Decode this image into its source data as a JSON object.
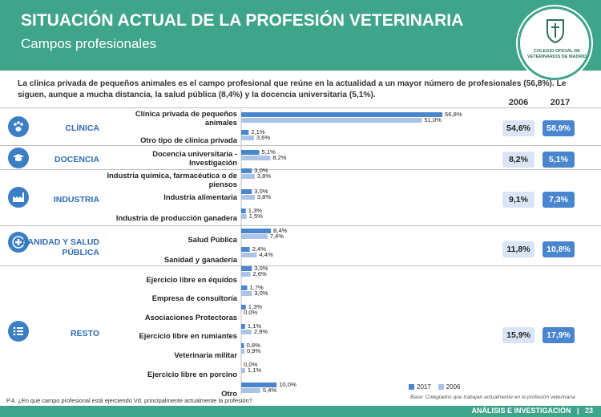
{
  "header": {
    "title": "SITUACIÓN ACTUAL DE LA PROFESIÓN VETERINARIA",
    "subtitle": "Campos profesionales",
    "logo_text": "COLEGIO OFICIAL DE VETERINARIOS DE MADRID"
  },
  "intro": "La clínica privada de pequeños animales es el campo profesional que reúne en la actualidad a un mayor número de profesionales (56,8%). Le siguen, aunque a mucha distancia, la salud pública (8,4%) y la docencia universitaria (5,1%).",
  "years": [
    "2006",
    "2017"
  ],
  "colors": {
    "header": "#3fa58a",
    "bar_2017": "#4a86cf",
    "bar_2006": "#a9c4e6",
    "category_text": "#2f6db5"
  },
  "categories": [
    {
      "name": "CLÍNICA",
      "icon": "paw-icon",
      "total_2006": "54,6%",
      "total_2017": "58,9%"
    },
    {
      "name": "DOCENCIA",
      "icon": "graduation-cap-icon",
      "total_2006": "8,2%",
      "total_2017": "5,1%"
    },
    {
      "name": "INDUSTRIA",
      "icon": "factory-icon",
      "total_2006": "9,1%",
      "total_2017": "7,3%"
    },
    {
      "name": "SANIDAD Y SALUD PÚBLICA",
      "icon": "health-cross-icon",
      "total_2006": "11,8%",
      "total_2017": "10,8%"
    },
    {
      "name": "RESTO",
      "icon": "list-icon",
      "total_2006": "15,9%",
      "total_2017": "17,9%"
    }
  ],
  "chart_data": {
    "type": "bar",
    "orientation": "horizontal",
    "categories": [
      "Clínica privada de pequeños animales",
      "Otro tipo de clínica privada",
      "Docencia universitaria - Investigación",
      "Industria química, farmacéutica o de piensos",
      "Industria alimentaria",
      "Industria de producción ganadera",
      "Salud Pública",
      "Sanidad y ganadería",
      "Ejercicio libre en équidos",
      "Empresa de consultoría",
      "Asociaciones Protectoras",
      "Ejercicio libre en rumiantes",
      "Veterinaria militar",
      "Ejercicio libre en porcino",
      "Otro"
    ],
    "series": [
      {
        "name": "2017",
        "values": [
          56.8,
          2.1,
          5.1,
          3.0,
          3.0,
          1.3,
          8.4,
          2.4,
          3.0,
          1.7,
          1.3,
          1.1,
          0.8,
          0.0,
          10.0
        ],
        "labels": [
          "56,8%",
          "2,1%",
          "5,1%",
          "3,0%",
          "3,0%",
          "1,3%",
          "8,4%",
          "2,4%",
          "3,0%",
          "1,7%",
          "1,3%",
          "1,1%",
          "0,8%",
          "0,0%",
          "10,0%"
        ]
      },
      {
        "name": "2006",
        "values": [
          51.0,
          3.6,
          8.2,
          3.8,
          3.8,
          1.5,
          7.4,
          4.4,
          2.6,
          3.0,
          0.0,
          2.9,
          0.9,
          1.1,
          5.4
        ],
        "labels": [
          "51,0%",
          "3,6%",
          "8,2%",
          "3,8%",
          "3,8%",
          "1,5%",
          "7,4%",
          "4,4%",
          "2,6%",
          "3,0%",
          "0,0%",
          "2,9%",
          "0,9%",
          "1,1%",
          "5,4%"
        ]
      }
    ],
    "legend_position": "bottom-right"
  },
  "labels": [
    "Clínica privada de pequeños animales",
    "Otro tipo de clínica privada",
    "Docencia universitaria - Investigación",
    "Industria química, farmacéutica o de piensos",
    "Industria alimentaria",
    "Industria de producción ganadera",
    "Salud Pública",
    "Sanidad y ganadería",
    "Ejercicio libre en équidos",
    "Empresa de consultoría",
    "Asociaciones Protectoras",
    "Ejercicio libre en rumiantes",
    "Veterinaria militar",
    "Ejercicio libre en porcino",
    "Otro"
  ],
  "legend": {
    "s2017": "2017",
    "s2006": "2006"
  },
  "question": "P.4. ¿En qué campo profesional está ejerciendo Vd. principalmente actualmente la profesión?",
  "base": "Base: Colegiados que trabajan actualmente en la profesión veterinaria",
  "footer": {
    "section": "ANÁLISIS E INVESTIGACIÓN",
    "page": "23"
  }
}
